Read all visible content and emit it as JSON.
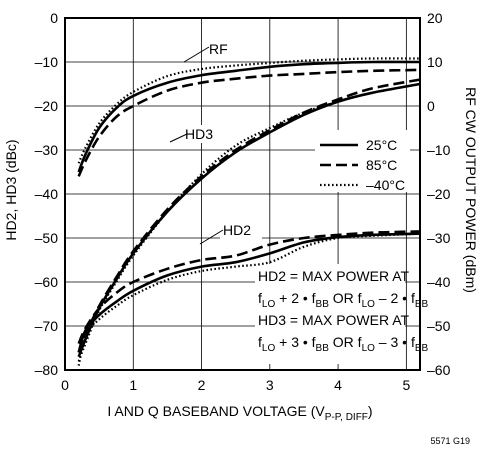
{
  "chart_data": {
    "type": "line",
    "xlabel": {
      "main": "I AND Q BASEBAND VOLTAGE (V",
      "sub": "P-P, DIFF",
      "tail": ")"
    },
    "ylabel": "HD2, HD3 (dBc)",
    "y2label": "RF CW OUTPUT POWER (dBm)",
    "xlim": [
      0,
      5.2
    ],
    "ylim": [
      -80,
      0
    ],
    "y2lim": [
      -60,
      20
    ],
    "grid": true,
    "x_ticks": [
      "0",
      "1",
      "2",
      "3",
      "4",
      "5"
    ],
    "y_ticks": [
      "0",
      "–10",
      "–20",
      "–30",
      "–40",
      "–50",
      "–60",
      "–70",
      "–80"
    ],
    "y2_ticks": [
      "20",
      "10",
      "0",
      "–10",
      "–20",
      "–30",
      "–40",
      "–50",
      "–60"
    ],
    "legend": {
      "placement": "right-middle",
      "entries": [
        {
          "label": "25°C",
          "style": "solid",
          "width": 2.6
        },
        {
          "label": "85°C",
          "style": "dashed",
          "width": 2.6
        },
        {
          "label": "–40°C",
          "style": "dotted",
          "width": 2.2
        }
      ]
    },
    "curve_labels": [
      {
        "text": "RF"
      },
      {
        "text": "HD3"
      },
      {
        "text": "HD2"
      }
    ],
    "annotation_lines": [
      [
        {
          "t": "HD2 = MAX POWER AT"
        }
      ],
      [
        {
          "t": "f"
        },
        {
          "t": "LO",
          "sub": true
        },
        {
          "t": " + 2 • f"
        },
        {
          "t": "BB",
          "sub": true
        },
        {
          "t": " OR f"
        },
        {
          "t": "LO",
          "sub": true
        },
        {
          "t": " – 2 • f"
        },
        {
          "t": "BB",
          "sub": true
        }
      ],
      [
        {
          "t": "HD3 = MAX POWER AT"
        }
      ],
      [
        {
          "t": "f"
        },
        {
          "t": "LO",
          "sub": true
        },
        {
          "t": " + 3 • f"
        },
        {
          "t": "BB",
          "sub": true
        },
        {
          "t": " OR f"
        },
        {
          "t": "LO",
          "sub": true
        },
        {
          "t": " – 3 • f"
        },
        {
          "t": "BB",
          "sub": true
        }
      ]
    ],
    "figure_id": "5571 G19",
    "series": [
      {
        "name": "RF 25°C",
        "axis": "right",
        "style": "solid",
        "width": 2.6,
        "x": [
          0.2,
          0.3,
          0.5,
          0.75,
          1,
          1.5,
          2,
          2.5,
          3,
          3.5,
          4,
          4.5,
          5.2
        ],
        "y": [
          -15,
          -11,
          -5,
          -0.5,
          2.3,
          5.3,
          7,
          8,
          8.9,
          9.5,
          9.8,
          10,
          10
        ]
      },
      {
        "name": "RF 85°C",
        "axis": "right",
        "style": "dashed",
        "width": 2.6,
        "x": [
          0.2,
          0.3,
          0.5,
          0.75,
          1,
          1.5,
          2,
          2.5,
          3,
          3.5,
          4,
          4.5,
          5.2
        ],
        "y": [
          -16,
          -12.5,
          -7,
          -2.5,
          0,
          3.5,
          5.3,
          6.2,
          6.9,
          7.3,
          7.7,
          8,
          8.2
        ]
      },
      {
        "name": "RF -40°C",
        "axis": "right",
        "style": "dotted",
        "width": 2.2,
        "x": [
          0.2,
          0.3,
          0.5,
          0.75,
          1,
          1.5,
          2,
          2.5,
          3,
          3.5,
          4,
          4.5,
          5.2
        ],
        "y": [
          -13,
          -9.5,
          -4,
          0.3,
          3.2,
          6.8,
          8.4,
          9.2,
          9.8,
          10.3,
          10.6,
          10.8,
          10.8
        ]
      },
      {
        "name": "HD3 25°C",
        "axis": "left",
        "style": "solid",
        "width": 2.6,
        "x": [
          0.2,
          0.3,
          0.5,
          0.75,
          1,
          1.5,
          2,
          2.5,
          3,
          3.5,
          4,
          4.5,
          5.2
        ],
        "y": [
          -77,
          -73,
          -66,
          -59.5,
          -53.5,
          -44,
          -36.5,
          -30.5,
          -26,
          -22,
          -19,
          -17,
          -15
        ]
      },
      {
        "name": "HD3 85°C",
        "axis": "left",
        "style": "dashed",
        "width": 2.6,
        "x": [
          0.2,
          0.3,
          0.5,
          0.75,
          1,
          1.5,
          2,
          2.5,
          3,
          3.5,
          4,
          4.5,
          5.2
        ],
        "y": [
          -76,
          -72,
          -65.5,
          -59,
          -53,
          -43.5,
          -36,
          -30,
          -25.5,
          -21.5,
          -18.5,
          -16,
          -14
        ]
      },
      {
        "name": "HD3 -40°C",
        "axis": "left",
        "style": "dotted",
        "width": 2.2,
        "x": [
          0.2,
          0.3,
          0.5,
          0.75,
          1,
          1.5,
          2,
          2.5,
          3,
          3.5,
          4,
          4.5,
          5.2
        ],
        "y": [
          -78,
          -74,
          -66.5,
          -60,
          -54,
          -44,
          -35.5,
          -29,
          -25,
          -21.5,
          -19,
          -17,
          -15
        ]
      },
      {
        "name": "HD2 25°C",
        "axis": "left",
        "style": "solid",
        "width": 2.6,
        "x": [
          0.2,
          0.3,
          0.5,
          0.75,
          1,
          1.5,
          2,
          2.5,
          3,
          3.5,
          4,
          4.5,
          5.2
        ],
        "y": [
          -76,
          -71,
          -67.5,
          -64.5,
          -62,
          -58.5,
          -56.5,
          -55.5,
          -53.5,
          -51,
          -49.8,
          -49.3,
          -49
        ]
      },
      {
        "name": "HD2 85°C",
        "axis": "left",
        "style": "dashed",
        "width": 2.6,
        "x": [
          0.2,
          0.3,
          0.5,
          0.75,
          1,
          1.5,
          2,
          2.5,
          3,
          3.5,
          4,
          4.5,
          5.2
        ],
        "y": [
          -74,
          -70.5,
          -66,
          -62.5,
          -60,
          -57,
          -55,
          -54,
          -51.5,
          -50,
          -49.3,
          -48.8,
          -48.5
        ]
      },
      {
        "name": "HD2 -40°C",
        "axis": "left",
        "style": "dotted",
        "width": 2.2,
        "x": [
          0.2,
          0.3,
          0.5,
          0.75,
          1,
          1.5,
          2,
          2.5,
          3,
          3.5,
          4,
          4.5,
          5.2
        ],
        "y": [
          -79,
          -72,
          -68.5,
          -65.5,
          -63,
          -59.5,
          -57.5,
          -56.5,
          -55.5,
          -52,
          -50,
          -49.5,
          -49
        ]
      }
    ]
  }
}
